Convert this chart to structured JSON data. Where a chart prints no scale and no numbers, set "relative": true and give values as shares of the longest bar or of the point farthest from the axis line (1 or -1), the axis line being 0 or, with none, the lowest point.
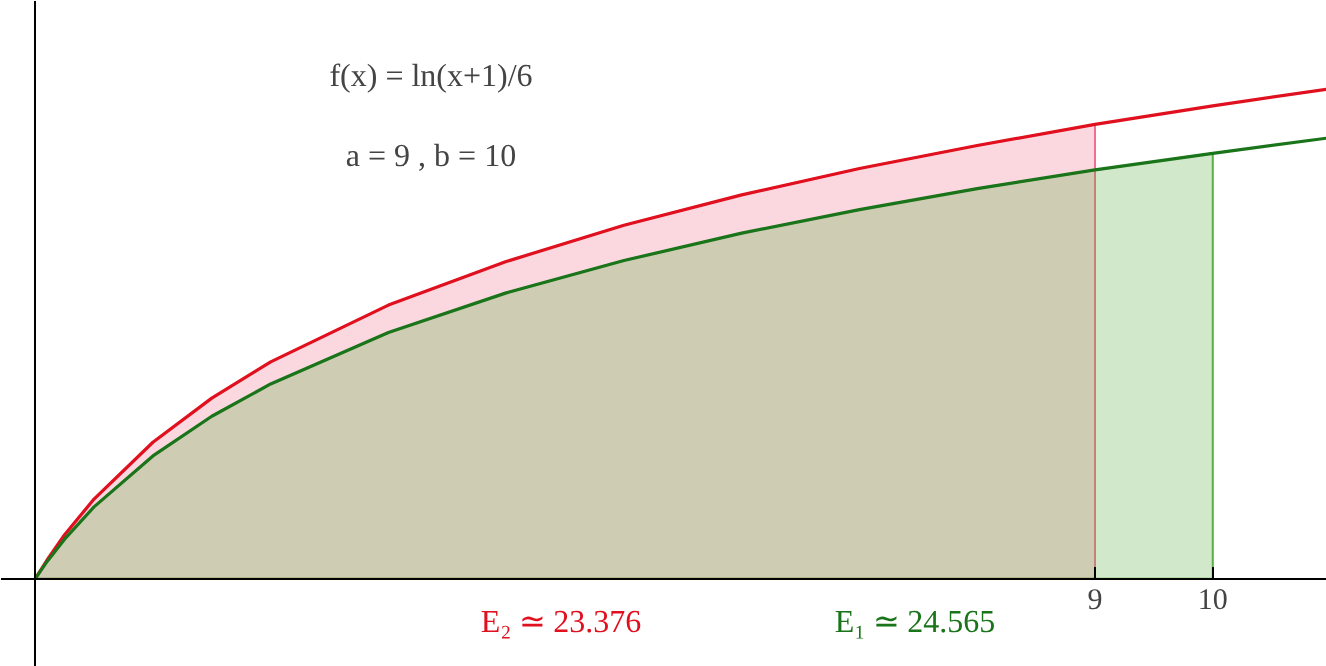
{
  "chart_data": {
    "type": "line",
    "relative": true,
    "xlim": [
      -0.29,
      10.97
    ],
    "xticks": [
      9,
      10
    ],
    "series": [
      {
        "type": "area",
        "color": "#f07090",
        "x": [
          0,
          0.1,
          0.25,
          0.5,
          1,
          1.5,
          2,
          3,
          4,
          5,
          6,
          7,
          8,
          9
        ],
        "values": [
          0,
          0.038,
          0.09,
          0.163,
          0.279,
          0.369,
          0.443,
          0.559,
          0.648,
          0.722,
          0.784,
          0.838,
          0.885,
          0.928
        ]
      },
      {
        "type": "area",
        "color": "#58b040",
        "x": [
          0,
          0.1,
          0.25,
          0.5,
          1,
          1.5,
          2,
          3,
          4,
          5,
          6,
          7,
          8,
          9,
          10
        ],
        "values": [
          0,
          0.035,
          0.081,
          0.147,
          0.251,
          0.332,
          0.398,
          0.503,
          0.584,
          0.65,
          0.706,
          0.754,
          0.797,
          0.835,
          0.869
        ]
      },
      {
        "color": "#e0101e",
        "x": [
          0,
          0.1,
          0.25,
          0.5,
          1,
          1.5,
          2,
          3,
          4,
          5,
          6,
          7,
          8,
          9,
          10,
          10.97
        ],
        "values": [
          0,
          0.038,
          0.09,
          0.163,
          0.279,
          0.369,
          0.443,
          0.559,
          0.648,
          0.722,
          0.784,
          0.838,
          0.885,
          0.928,
          0.966,
          1.0
        ]
      },
      {
        "color": "#1a741a",
        "x": [
          0,
          0.1,
          0.25,
          0.5,
          1,
          1.5,
          2,
          3,
          4,
          5,
          6,
          7,
          8,
          9,
          10,
          10.97
        ],
        "values": [
          0,
          0.035,
          0.081,
          0.147,
          0.251,
          0.332,
          0.398,
          0.503,
          0.584,
          0.65,
          0.706,
          0.754,
          0.797,
          0.835,
          0.869,
          0.9
        ]
      }
    ],
    "annotations": [
      "f(x) = ln(x+1)/6",
      "a = 9 , b = 10",
      "E₂ ≃ 23.376",
      "E₁ ≃ 24.565"
    ]
  }
}
